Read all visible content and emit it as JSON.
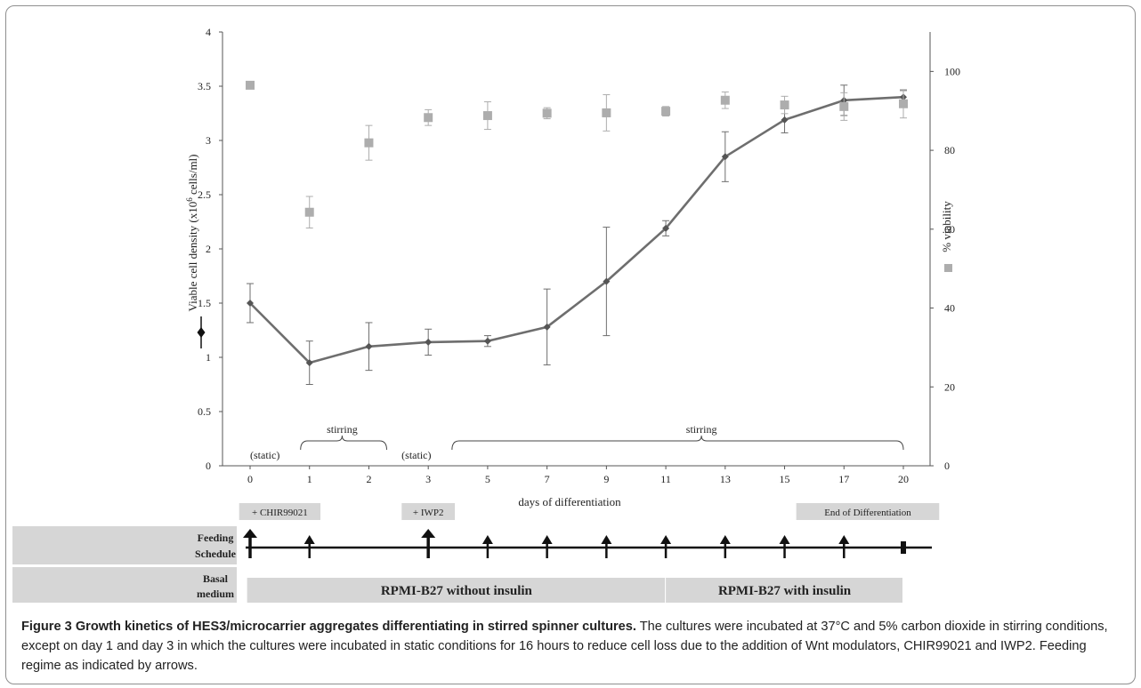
{
  "chart_data": {
    "type": "line",
    "x_categories": [
      "0",
      "1",
      "2",
      "3",
      "5",
      "7",
      "9",
      "11",
      "13",
      "15",
      "17",
      "20"
    ],
    "xlabel": "days of differentiation",
    "left_axis": {
      "ylabel_prefix": "Viable cell density (x10",
      "ylabel_sup": "6",
      "ylabel_suffix": " cells/ml)",
      "ylim": [
        0,
        4
      ],
      "ticks": [
        "0",
        "0.5",
        "1",
        "1.5",
        "2",
        "2.5",
        "3",
        "3.5",
        "4"
      ],
      "tick_values": [
        0,
        0.5,
        1,
        1.5,
        2,
        2.5,
        3,
        3.5,
        4
      ]
    },
    "right_axis": {
      "ylabel": "% viability",
      "ylim": [
        0,
        110
      ],
      "ticks": [
        "0",
        "20",
        "40",
        "60",
        "80",
        "100"
      ],
      "tick_values": [
        0,
        20,
        40,
        60,
        80,
        100
      ]
    },
    "series": [
      {
        "axis": "left",
        "marker": "diamond",
        "color": "#6e6e6e",
        "values": [
          1.5,
          0.95,
          1.1,
          1.14,
          1.15,
          1.28,
          1.7,
          2.19,
          2.85,
          3.19,
          3.37,
          3.4
        ],
        "errors": [
          0.18,
          0.2,
          0.22,
          0.12,
          0.05,
          0.35,
          0.5,
          0.07,
          0.23,
          0.12,
          0.14,
          0.06
        ]
      },
      {
        "axis": "right",
        "marker": "square",
        "color": "#adadad",
        "values": [
          96.5,
          64.3,
          81.9,
          88.3,
          88.8,
          89.4,
          89.5,
          89.9,
          92.7,
          91.5,
          91.1,
          91.8
        ],
        "errors": [
          0,
          4,
          4.4,
          2,
          3.5,
          1.4,
          4.6,
          1.2,
          2.1,
          2.2,
          3.5,
          3.6
        ]
      }
    ],
    "legend_placement": "axis-labels",
    "grid": false,
    "annotations": [
      {
        "text": "(static)",
        "x_cat": 0.25
      },
      {
        "text": "stirring",
        "x_cat": 1.55,
        "bracket": [
          0.85,
          2.3
        ]
      },
      {
        "text": "(static)",
        "x_cat": 2.8
      },
      {
        "text": "stirring",
        "x_cat": 7.6,
        "bracket": [
          3.4,
          11.0
        ]
      }
    ],
    "treatment_labels": [
      {
        "text": "+ CHIR99021",
        "x_cat": 0.5
      },
      {
        "text": "+ IWP2",
        "x_cat": 3.0
      },
      {
        "text": "End of Differentiation",
        "x_cat": 10.4
      }
    ]
  },
  "feeding": {
    "label_line1": "Feeding",
    "label_line2": "Schedule",
    "arrows": [
      {
        "x_cat": 0,
        "size": "large"
      },
      {
        "x_cat": 1,
        "size": "small"
      },
      {
        "x_cat": 3,
        "size": "large"
      },
      {
        "x_cat": 4,
        "size": "small"
      },
      {
        "x_cat": 5,
        "size": "small"
      },
      {
        "x_cat": 6,
        "size": "small"
      },
      {
        "x_cat": 7,
        "size": "small"
      },
      {
        "x_cat": 8,
        "size": "small"
      },
      {
        "x_cat": 9,
        "size": "small"
      },
      {
        "x_cat": 10,
        "size": "small"
      }
    ],
    "end_marker_x_cat": 11
  },
  "medium": {
    "label_line1": "Basal",
    "label_line2": "medium",
    "segments": [
      {
        "text": "RPMI-B27 without insulin",
        "from_cat": -0.05,
        "to_cat": 7.0
      },
      {
        "text": "RPMI-B27 with insulin",
        "from_cat": 7.0,
        "to_cat": 11.0
      }
    ]
  },
  "caption": {
    "title": "Figure 3 Growth kinetics of HES3/microcarrier aggregates differentiating in stirred spinner cultures.",
    "body": " The cultures were incubated at 37°C and 5% carbon dioxide in stirring conditions, except on day 1 and day 3 in which the cultures were incubated in static conditions for 16 hours to reduce cell loss due to the addition of Wnt modulators, CHIR99021 and IWP2. Feeding regime as indicated by arrows."
  }
}
